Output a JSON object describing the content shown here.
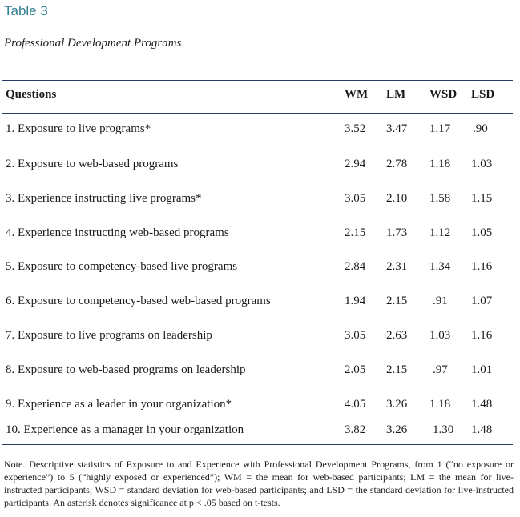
{
  "table_label": "Table 3",
  "table_title": "Professional Development Programs",
  "headers": [
    "Questions",
    "WM",
    "LM",
    "WSD",
    "LSD"
  ],
  "rows": [
    {
      "q": "1. Exposure to live programs*",
      "wm": "3.52",
      "lm": "3.47",
      "wsd": "1.17",
      "lsd": ".90"
    },
    {
      "q": "2. Exposure to web-based programs",
      "wm": "2.94",
      "lm": "2.78",
      "wsd": "1.18",
      "lsd": "1.03"
    },
    {
      "q": "3. Experience instructing live programs*",
      "wm": "3.05",
      "lm": "2.10",
      "wsd": "1.58",
      "lsd": "1.15"
    },
    {
      "q": "4. Experience instructing web-based programs",
      "wm": "2.15",
      "lm": "1.73",
      "wsd": "1.12",
      "lsd": "1.05"
    },
    {
      "q": "5. Exposure to competency-based live programs",
      "wm": "2.84",
      "lm": "2.31",
      "wsd": "1.34",
      "lsd": "1.16"
    },
    {
      "q": "6. Exposure to competency-based web-based programs",
      "wm": "1.94",
      "lm": "2.15",
      "wsd": ".91",
      "lsd": "1.07"
    },
    {
      "q": "7. Exposure to live programs on leadership",
      "wm": "3.05",
      "lm": "2.63",
      "wsd": "1.03",
      "lsd": "1.16"
    },
    {
      "q": "8. Exposure to web-based programs on leadership",
      "wm": "2.05",
      "lm": "2.15",
      "wsd": ".97",
      "lsd": "1.01"
    },
    {
      "q": "9. Experience as a leader in your organization*",
      "wm": "4.05",
      "lm": "3.26",
      "wsd": "1.18",
      "lsd": "1.48"
    },
    {
      "q": "10. Experience as a manager in your organization",
      "wm": "3.82",
      "lm": "3.26",
      "wsd": "1.30",
      "lsd": "1.48"
    }
  ],
  "note": "Note. Descriptive statistics of Exposure to and Experience with Professional Development Programs, from 1 (“no exposure or experience”) to 5 (“highly exposed or experienced”); WM = the mean for web-based participants; LM = the mean for live-instructed participants; WSD = standard deviation for web-based participants; and LSD = the standard deviation for live-instructed participants. An asterisk denotes significance at p < .05 based on t-tests."
}
